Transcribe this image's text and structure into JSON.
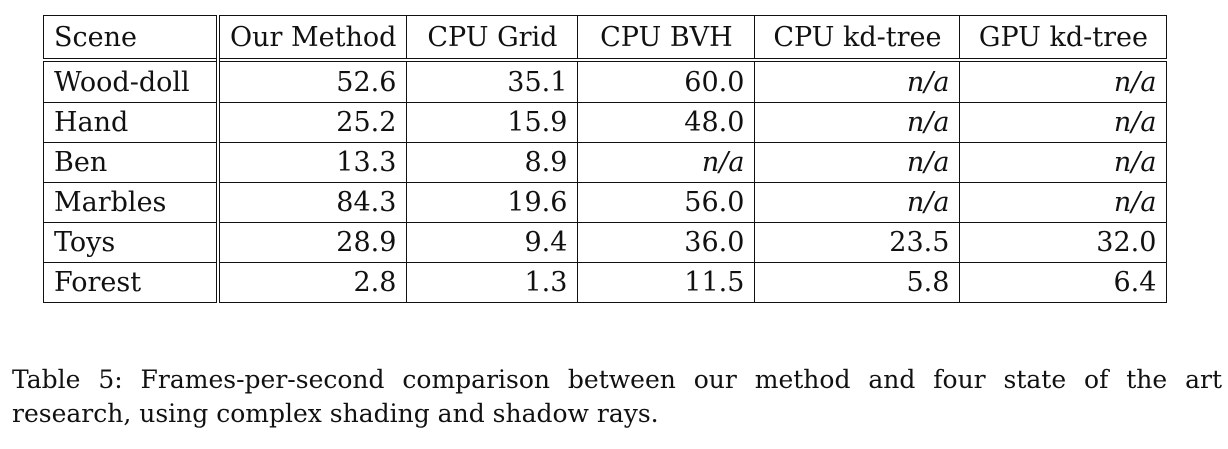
{
  "table": {
    "headers": [
      "Scene",
      "Our Method",
      "CPU Grid",
      "CPU BVH",
      "CPU kd-tree",
      "GPU kd-tree"
    ],
    "rows": [
      [
        "Wood-doll",
        "52.6",
        "35.1",
        "60.0",
        "n/a",
        "n/a"
      ],
      [
        "Hand",
        "25.2",
        "15.9",
        "48.0",
        "n/a",
        "n/a"
      ],
      [
        "Ben",
        "13.3",
        "8.9",
        "n/a",
        "n/a",
        "n/a"
      ],
      [
        "Marbles",
        "84.3",
        "19.6",
        "56.0",
        "n/a",
        "n/a"
      ],
      [
        "Toys",
        "28.9",
        "9.4",
        "36.0",
        "23.5",
        "32.0"
      ],
      [
        "Forest",
        "2.8",
        "1.3",
        "11.5",
        "5.8",
        "6.4"
      ]
    ]
  },
  "caption": {
    "line1": "Table 5: Frames-per-second comparison between our method and four state of the art",
    "line2": "research, using complex shading and shadow rays."
  }
}
